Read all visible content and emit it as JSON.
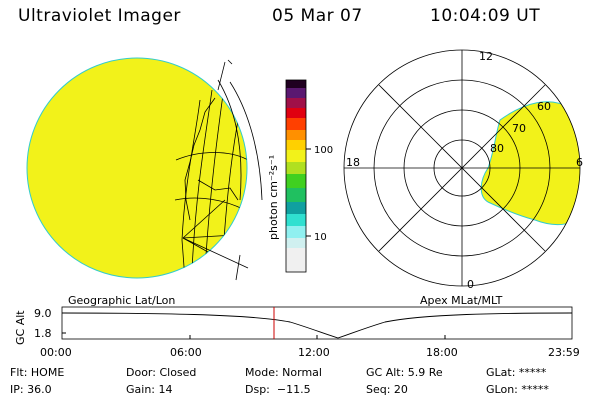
{
  "header": {
    "instrument": "Ultraviolet Imager",
    "date": "05 Mar 07",
    "time": "10:04:09 UT"
  },
  "colorbar": {
    "label": "photon cm⁻²s⁻¹",
    "tick_100": "100",
    "tick_10": "10"
  },
  "polar": {
    "mlt_12": "12",
    "mlt_18": "18",
    "mlt_6": "6",
    "mlt_0": "0",
    "lat_60": "60",
    "lat_70": "70",
    "lat_80": "80"
  },
  "panels": {
    "left_label": "Geographic Lat/Lon",
    "right_label": "Apex MLat/MLT"
  },
  "orbit": {
    "ylabel": "GC Alt",
    "y_top": "9.0",
    "y_bottom": "1.8",
    "ticks": [
      "00:00",
      "06:00",
      "12:00",
      "18:00",
      "23:59"
    ],
    "current_time_marker": "10:04"
  },
  "status": {
    "flt": "Flt: HOME",
    "ip": "IP: 36.0",
    "door": "Door: Closed",
    "gain": "Gain: 14",
    "mode": "Mode: Normal",
    "dsp": "Dsp:  −11.5",
    "gc_alt": "GC Alt: 5.9 Re",
    "seq": "Seq: 20",
    "glat": "GLat: *****",
    "glon": "GLon: *****"
  },
  "colors": {
    "image_fill": "#f2f21a",
    "marker": "#cc0000"
  }
}
